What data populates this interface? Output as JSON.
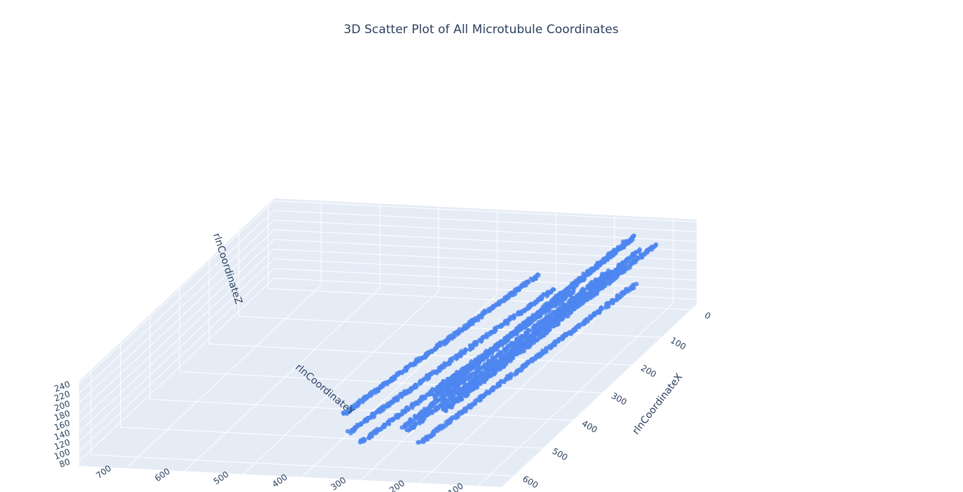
{
  "chart_data": {
    "type": "scatter",
    "subtype": "scatter3d",
    "title": "3D Scatter Plot of All Microtubule Coordinates",
    "xlabel": "rlnCoordinateX",
    "ylabel": "rlnCoordinateY",
    "zlabel": "rlnCoordinateZ",
    "x_ticks": [
      "0",
      "100",
      "200",
      "300",
      "400",
      "500",
      "600"
    ],
    "y_ticks": [
      "100",
      "200",
      "300",
      "400",
      "500",
      "600",
      "700"
    ],
    "z_ticks": [
      "80",
      "100",
      "120",
      "140",
      "160",
      "180",
      "200",
      "220",
      "240"
    ],
    "xlim": [
      -20,
      640
    ],
    "ylim": [
      60,
      780
    ],
    "zlim": [
      70,
      245
    ],
    "marker_color": "#4e86f0",
    "pane_color": "#e5ecf6",
    "grid_color": "#ffffff",
    "series": [
      {
        "filaments": [
          {
            "start": [
              10,
              150,
              222
            ],
            "end": [
              600,
              190,
              228
            ]
          },
          {
            "start": [
              20,
              160,
              216
            ],
            "end": [
              590,
              200,
              220
            ]
          },
          {
            "start": [
              0,
              120,
              200
            ],
            "end": [
              610,
              170,
              205
            ]
          },
          {
            "start": [
              15,
              140,
              196
            ],
            "end": [
              600,
              180,
              200
            ]
          },
          {
            "start": [
              10,
              170,
              160
            ],
            "end": [
              620,
              230,
              165
            ]
          },
          {
            "start": [
              20,
              190,
              152
            ],
            "end": [
              600,
              250,
              158
            ]
          },
          {
            "start": [
              40,
              300,
              150
            ],
            "end": [
              560,
              370,
              156
            ]
          },
          {
            "start": [
              10,
              150,
              122
            ],
            "end": [
              600,
              220,
              128
            ]
          },
          {
            "start": [
              30,
              280,
              115
            ],
            "end": [
              560,
              360,
              120
            ]
          },
          {
            "start": [
              20,
              250,
              108
            ],
            "end": [
              580,
              330,
              112
            ]
          }
        ]
      }
    ]
  }
}
